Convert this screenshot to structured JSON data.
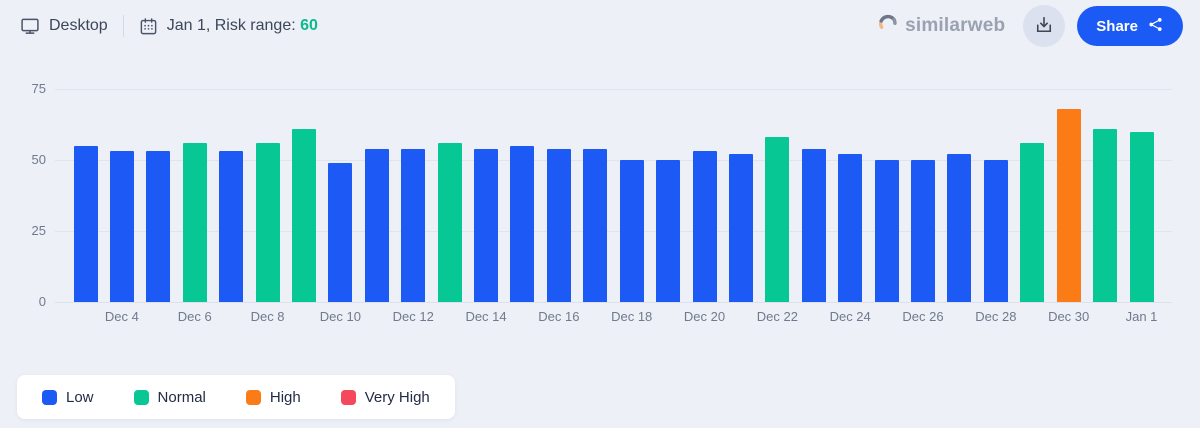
{
  "header": {
    "device_label": "Desktop",
    "date_summary_prefix": "Jan 1, Risk range: ",
    "risk_value": "60",
    "brand": "similarweb",
    "share_label": "Share"
  },
  "colors": {
    "low": "#1c59f5",
    "normal": "#07c795",
    "high": "#fb7b17",
    "very_high": "#f4495c",
    "risk_accent": "#0bbc8b",
    "share_button": "#1b5af5"
  },
  "chart_data": {
    "type": "bar",
    "title": "",
    "xlabel": "",
    "ylabel": "",
    "ylim": [
      0,
      75
    ],
    "y_ticks": [
      0,
      25,
      50,
      75
    ],
    "grid": true,
    "legend_position": "bottom-left",
    "x": [
      "Dec 3",
      "Dec 4",
      "Dec 5",
      "Dec 6",
      "Dec 7",
      "Dec 8",
      "Dec 9",
      "Dec 10",
      "Dec 11",
      "Dec 12",
      "Dec 13",
      "Dec 14",
      "Dec 15",
      "Dec 16",
      "Dec 17",
      "Dec 18",
      "Dec 19",
      "Dec 20",
      "Dec 21",
      "Dec 22",
      "Dec 23",
      "Dec 24",
      "Dec 25",
      "Dec 26",
      "Dec 27",
      "Dec 28",
      "Dec 29",
      "Dec 30",
      "Dec 31",
      "Jan 1"
    ],
    "values": [
      55,
      53,
      53,
      56,
      53,
      56,
      61,
      49,
      54,
      54,
      56,
      54,
      55,
      54,
      54,
      50,
      50,
      53,
      52,
      58,
      54,
      52,
      50,
      50,
      52,
      50,
      56,
      68,
      61,
      60
    ],
    "statuses": [
      "low",
      "low",
      "low",
      "normal",
      "low",
      "normal",
      "normal",
      "low",
      "low",
      "low",
      "normal",
      "low",
      "low",
      "low",
      "low",
      "low",
      "low",
      "low",
      "low",
      "normal",
      "low",
      "low",
      "low",
      "low",
      "low",
      "low",
      "normal",
      "high",
      "normal",
      "normal"
    ],
    "x_tick_labels": [
      "Dec 4",
      "Dec 6",
      "Dec 8",
      "Dec 10",
      "Dec 12",
      "Dec 14",
      "Dec 16",
      "Dec 18",
      "Dec 20",
      "Dec 22",
      "Dec 24",
      "Dec 26",
      "Dec 28",
      "Dec 30",
      "Jan 1"
    ]
  },
  "legend": {
    "items": [
      {
        "label": "Low",
        "status": "low"
      },
      {
        "label": "Normal",
        "status": "normal"
      },
      {
        "label": "High",
        "status": "high"
      },
      {
        "label": "Very High",
        "status": "very_high"
      }
    ]
  }
}
